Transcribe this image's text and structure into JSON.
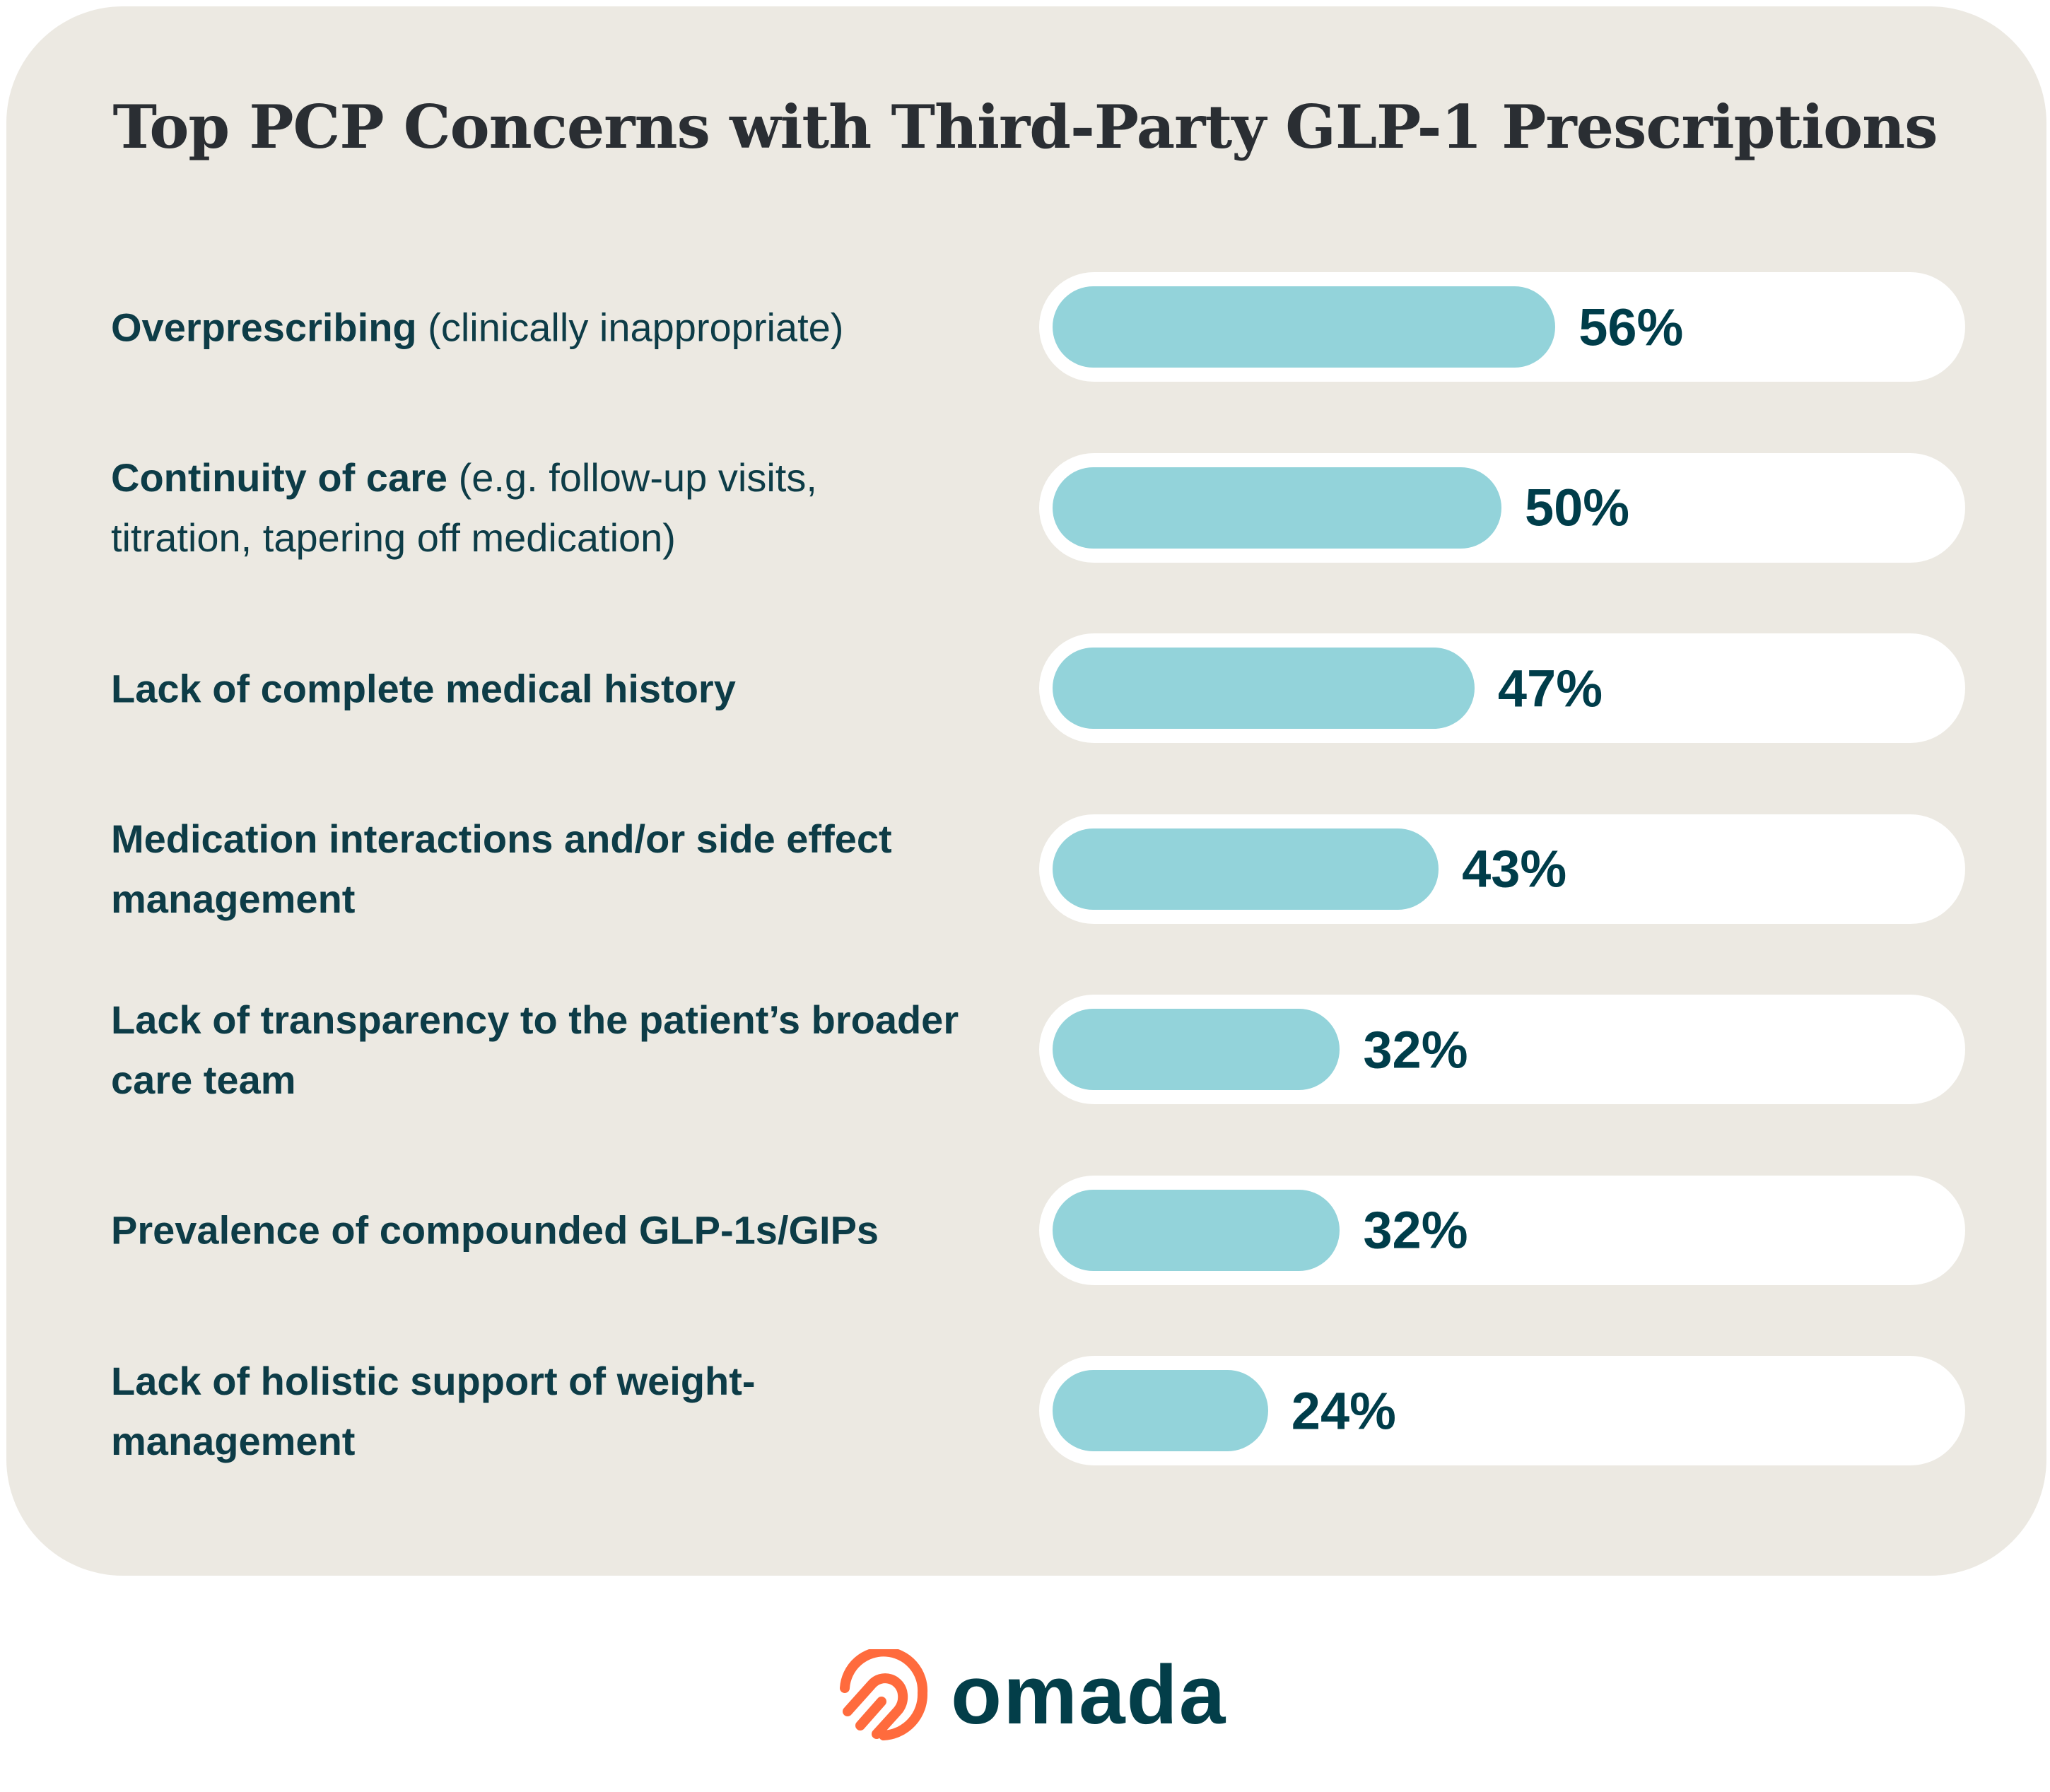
{
  "title": "Top PCP Concerns with Third-Party GLP-1 Prescriptions",
  "colors": {
    "background": "#ece9e2",
    "track": "#ffffff",
    "bar": "#93d3da",
    "text": "#0d3c47",
    "logo_mark": "#ff6b3d",
    "logo_text": "#033e49"
  },
  "chart_data": {
    "type": "bar",
    "orientation": "horizontal",
    "title": "Top PCP Concerns with Third-Party GLP-1 Prescriptions",
    "xlim": [
      0,
      100
    ],
    "grid": false,
    "categories": [
      {
        "bold": "Overprescribing",
        "normal": " (clinically inappropriate)"
      },
      {
        "bold": "Continuity of care",
        "normal": " (e.g. follow-up visits, titration, tapering off medication)"
      },
      {
        "bold": "Lack of complete medical history",
        "normal": ""
      },
      {
        "bold": "Medication interactions and/or side effect management",
        "normal": ""
      },
      {
        "bold": "Lack of transparency to the patient’s broader care team",
        "normal": ""
      },
      {
        "bold": "Prevalence of compounded GLP-1s/GIPs",
        "normal": ""
      },
      {
        "bold": "Lack of holistic support of weight-management",
        "normal": ""
      }
    ],
    "values": [
      56,
      50,
      47,
      43,
      32,
      32,
      24
    ],
    "value_labels": [
      "56%",
      "50%",
      "47%",
      "43%",
      "32%",
      "32%",
      "24%"
    ]
  },
  "logo": {
    "text": "omada",
    "icon": "omada-fingerprint-mark"
  }
}
